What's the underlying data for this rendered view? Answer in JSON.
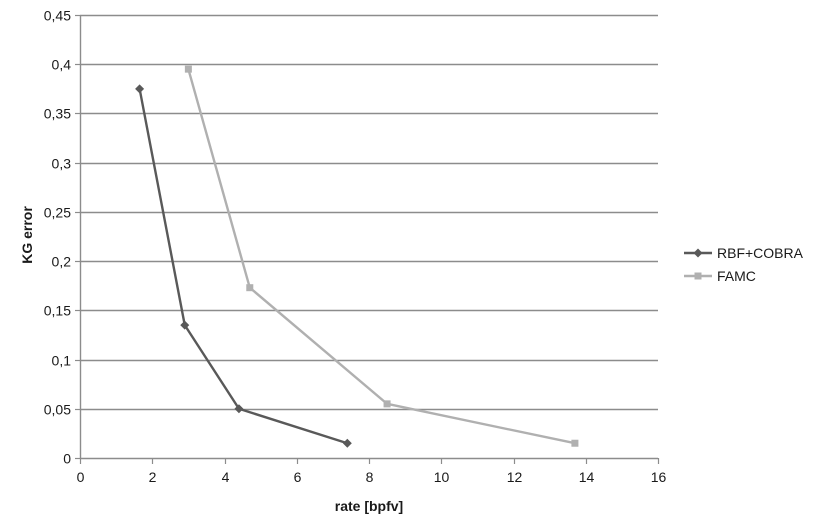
{
  "chart_data": {
    "type": "line",
    "xlabel": "rate [bpfv]",
    "ylabel": "KG error",
    "xlim": [
      0,
      16
    ],
    "ylim": [
      0,
      0.45
    ],
    "x_ticks": [
      0,
      2,
      4,
      6,
      8,
      10,
      12,
      14,
      16
    ],
    "y_ticks": [
      0,
      0.05,
      0.1,
      0.15,
      0.2,
      0.25,
      0.3,
      0.35,
      0.4,
      0.45
    ],
    "x_tick_labels": [
      "0",
      "2",
      "4",
      "6",
      "8",
      "10",
      "12",
      "14",
      "16"
    ],
    "y_tick_labels": [
      "0",
      "0,05",
      "0,1",
      "0,15",
      "0,2",
      "0,25",
      "0,3",
      "0,35",
      "0,4",
      "0,45"
    ],
    "grid": "horizontal",
    "legend_position": "right",
    "series": [
      {
        "name": "RBF+COBRA",
        "marker": "diamond",
        "color": "#595959",
        "points": [
          {
            "x": 1.65,
            "y": 0.375
          },
          {
            "x": 2.9,
            "y": 0.135
          },
          {
            "x": 4.4,
            "y": 0.05
          },
          {
            "x": 7.4,
            "y": 0.015
          }
        ]
      },
      {
        "name": "FAMC",
        "marker": "square",
        "color": "#b0b0b0",
        "points": [
          {
            "x": 3.0,
            "y": 0.395
          },
          {
            "x": 4.7,
            "y": 0.173
          },
          {
            "x": 8.5,
            "y": 0.055
          },
          {
            "x": 13.7,
            "y": 0.015
          }
        ]
      }
    ]
  }
}
